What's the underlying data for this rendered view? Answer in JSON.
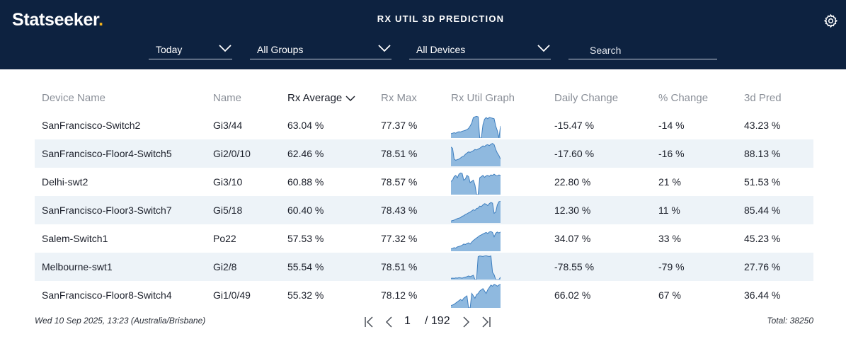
{
  "header": {
    "logo_text": "Statseeker",
    "logo_dot": ".",
    "title": "RX UTIL 3D PREDICTION",
    "settings_icon": "gear-icon",
    "brand_color": "#0d2240",
    "accent_color": "#f5b41b"
  },
  "filters": {
    "time": "Today",
    "groups": "All Groups",
    "devices": "All Devices",
    "search_placeholder": "Search"
  },
  "table": {
    "columns": [
      "Device Name",
      "Name",
      "Rx Average",
      "Rx Max",
      "Rx Util Graph",
      "Daily Change",
      "% Change",
      "3d Pred"
    ],
    "sorted_column": "Rx Average",
    "sort_icon": "chevron-down-icon",
    "rows": [
      {
        "device": "SanFrancisco-Switch2",
        "name": "Gi3/44",
        "avg": "63.04 %",
        "max": "77.37 %",
        "daily": "-15.47 %",
        "pct": "-14 %",
        "pred": "43.23 %",
        "spark": [
          0.18,
          0.2,
          0.22,
          0.2,
          0.24,
          0.26,
          0.25,
          0.28,
          0.3,
          0.32,
          0.35,
          0.4,
          0.5,
          0.62,
          0.85,
          0.88,
          0.9,
          0.88,
          0,
          0,
          0.55,
          0.78,
          0.85,
          0.8,
          0.86,
          0.84,
          0.82,
          0.8,
          0.5,
          0.3,
          0,
          0.5
        ]
      },
      {
        "device": "SanFrancisco-Floor4-Switch5",
        "name": "Gi2/0/10",
        "avg": "62.46 %",
        "max": "78.51 %",
        "daily": "-17.60 %",
        "pct": "-16 %",
        "pred": "88.13 %",
        "spark": [
          0.8,
          0.75,
          0.3,
          0.25,
          0.28,
          0.3,
          0.35,
          0.4,
          0.42,
          0.5,
          0.55,
          0.6,
          0.58,
          0.62,
          0.65,
          0.7,
          0.68,
          0.72,
          0.75,
          0.8,
          0.85,
          0.82,
          0.88,
          0.9,
          0.86,
          0.92,
          0.95,
          0.9,
          0.7,
          0.55,
          0.45,
          0.3
        ]
      },
      {
        "device": "Delhi-swt2",
        "name": "Gi3/10",
        "avg": "60.88 %",
        "max": "78.57 %",
        "daily": "22.80 %",
        "pct": "21 %",
        "pred": "51.53 %",
        "spark": [
          0.55,
          0.6,
          0.75,
          0.8,
          0.7,
          0.85,
          0.9,
          0.88,
          0.6,
          0.65,
          0.8,
          0.75,
          0.5,
          0.55,
          0.6,
          0.4,
          0,
          0,
          0.7,
          0.75,
          0.8,
          0.72,
          0.78,
          0.8,
          0.76,
          0.82,
          0.8,
          0.85,
          0.8,
          0.78,
          0.82,
          0.8
        ]
      },
      {
        "device": "SanFrancisco-Floor3-Switch7",
        "name": "Gi5/18",
        "avg": "60.40 %",
        "max": "78.43 %",
        "daily": "12.30 %",
        "pct": "11 %",
        "pred": "85.44 %",
        "spark": [
          0.08,
          0.1,
          0.12,
          0.15,
          0.18,
          0.2,
          0.22,
          0.28,
          0.3,
          0.35,
          0.38,
          0.42,
          0.45,
          0.5,
          0.55,
          0.52,
          0.6,
          0.62,
          0.7,
          0.68,
          0.75,
          0.8,
          0.78,
          0.72,
          0.8,
          0.85,
          0.82,
          0.4,
          0.45,
          0.75,
          0.88,
          0.9
        ]
      },
      {
        "device": "Salem-Switch1",
        "name": "Po22",
        "avg": "57.53 %",
        "max": "77.32 %",
        "daily": "34.07 %",
        "pct": "33 %",
        "pred": "45.23 %",
        "spark": [
          0.1,
          0.12,
          0.15,
          0.13,
          0.18,
          0.2,
          0.22,
          0.25,
          0.3,
          0.28,
          0.32,
          0.35,
          0.3,
          0.38,
          0.45,
          0.5,
          0.55,
          0.6,
          0.65,
          0.68,
          0.72,
          0.75,
          0.78,
          0.74,
          0.8,
          0.82,
          0.78,
          0.6,
          0.75,
          0.8,
          0.76,
          0.8
        ]
      },
      {
        "device": "Melbourne-swt1",
        "name": "Gi2/8",
        "avg": "55.54 %",
        "max": "78.51 %",
        "daily": "-78.55 %",
        "pct": "-79 %",
        "pred": "27.76 %",
        "spark": [
          0.05,
          0.06,
          0.05,
          0.07,
          0.06,
          0.08,
          0.07,
          0.06,
          0.08,
          0.1,
          0.12,
          0.15,
          0.12,
          0.15,
          0.18,
          0,
          0,
          0.95,
          0.98,
          0.97,
          0.96,
          0.98,
          0.99,
          0.97,
          0.96,
          0.98,
          0.3,
          0.2,
          0,
          0,
          0,
          0.1
        ]
      },
      {
        "device": "SanFrancisco-Floor8-Switch4",
        "name": "Gi1/0/49",
        "avg": "55.32 %",
        "max": "78.12 %",
        "daily": "66.02 %",
        "pct": "67 %",
        "pred": "36.44 %",
        "spark": [
          0.1,
          0.12,
          0.15,
          0.2,
          0.25,
          0.3,
          0.35,
          0.3,
          0.4,
          0.45,
          0.5,
          0,
          0,
          0.6,
          0.5,
          0.4,
          0.55,
          0.6,
          0.7,
          0.75,
          0.8,
          0.7,
          0.6,
          0.75,
          0.85,
          0.95,
          0.9,
          0.98,
          0.95,
          0.9,
          0.95,
          0.98
        ]
      }
    ]
  },
  "footer": {
    "timestamp": "Wed 10 Sep 2025, 13:23 (Australia/Brisbane)",
    "page": "1",
    "page_total": "/ 192",
    "total": "Total: 38250"
  }
}
